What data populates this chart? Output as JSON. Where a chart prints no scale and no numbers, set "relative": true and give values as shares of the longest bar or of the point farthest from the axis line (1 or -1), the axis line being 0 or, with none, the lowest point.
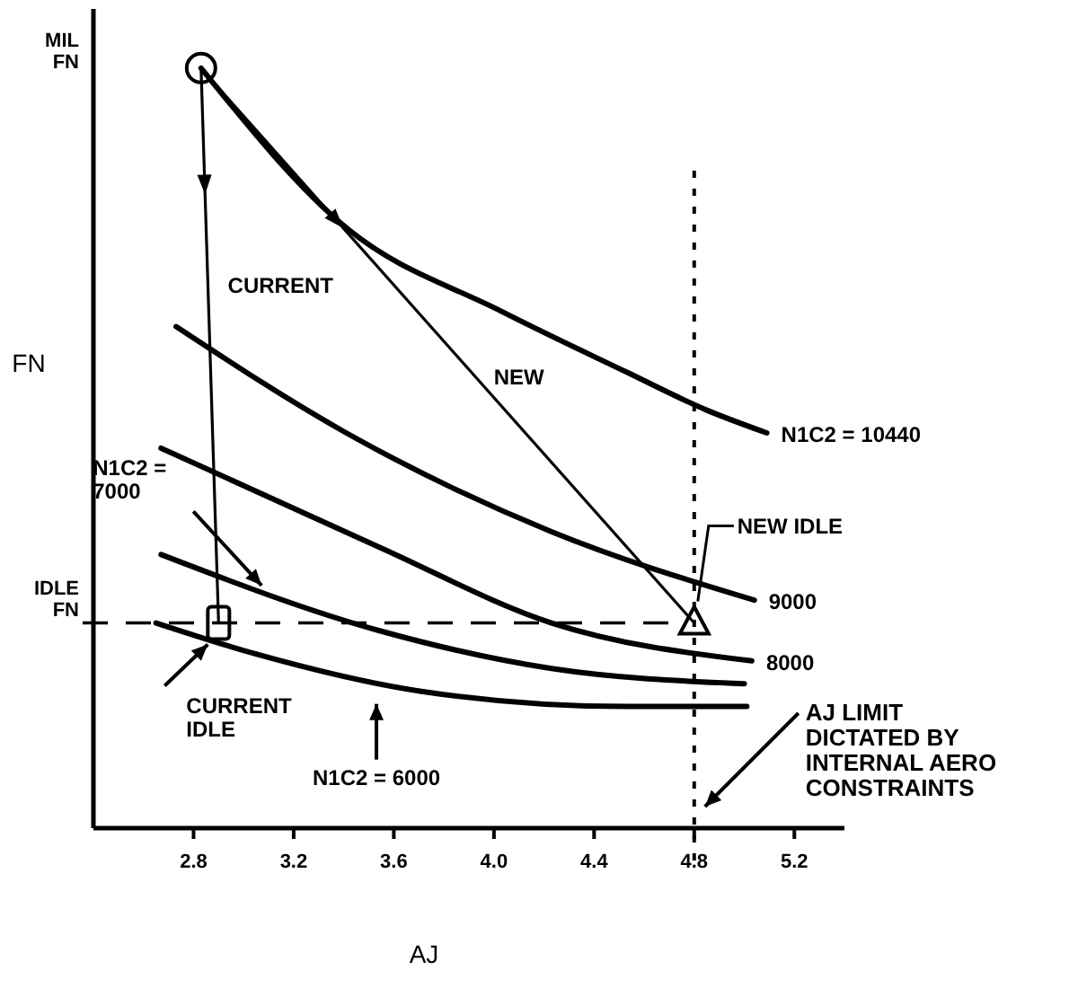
{
  "chart_data": {
    "type": "line",
    "relative": true,
    "xlabel": "AJ",
    "ylabel": "FN",
    "xlim": [
      2.4,
      5.4
    ],
    "xticks": [
      2.8,
      3.2,
      3.6,
      {
        "value": 4,
        "label": "4.0"
      },
      4.4,
      4.8,
      5.2
    ],
    "marker": "none",
    "line_style": "solid",
    "grid": false,
    "legend": false,
    "series": [
      {
        "name": "N1C2 = 10440",
        "color": "#000000",
        "x": [
          2.83,
          3.41,
          4.03,
          4.53,
          4.85,
          5.09
        ],
        "values": [
          1.0,
          0.79,
          0.68,
          0.6,
          0.55,
          0.52
        ]
      },
      {
        "name": "9000",
        "color": "#000000",
        "x": [
          2.73,
          3.41,
          4.23,
          5.04
        ],
        "values": [
          0.66,
          0.52,
          0.39,
          0.3
        ]
      },
      {
        "name": "8000",
        "color": "#000000",
        "x": [
          2.67,
          3.54,
          4.23,
          5.03
        ],
        "values": [
          0.5,
          0.37,
          0.27,
          0.22
        ]
      },
      {
        "name": "N1C2 = 7000",
        "color": "#000000",
        "x": [
          2.67,
          3.54,
          4.23,
          5.0
        ],
        "values": [
          0.36,
          0.26,
          0.21,
          0.19
        ]
      },
      {
        "name": "N1C2 = 6000",
        "color": "#000000",
        "x": [
          2.65,
          3.04,
          3.71,
          4.53,
          5.01
        ],
        "values": [
          0.27,
          0.23,
          0.18,
          0.16,
          0.16
        ]
      },
      {
        "name": "CURRENT",
        "color": "#000000",
        "x": [
          2.83,
          2.9
        ],
        "values": [
          1.0,
          0.27
        ]
      },
      {
        "name": "NEW",
        "color": "#000000",
        "x": [
          2.83,
          4.8
        ],
        "values": [
          1.0,
          0.27
        ]
      },
      {
        "type": "scatter",
        "marker": "circle",
        "color": "#000000",
        "x": [
          2.83
        ],
        "values": [
          1.0
        ]
      },
      {
        "type": "scatter",
        "marker": "square",
        "color": "#000000",
        "x": [
          2.9
        ],
        "values": [
          0.27
        ]
      },
      {
        "type": "scatter",
        "marker": "triangle",
        "color": "#000000",
        "x": [
          4.8
        ],
        "values": [
          0.27
        ]
      }
    ],
    "ref_lines": [
      {
        "axis": "y",
        "value": 0.27,
        "label": "IDLE FN",
        "line_style": "dashed",
        "color": "#000000"
      },
      {
        "axis": "x",
        "value": 4.8,
        "label": "AJ LIMIT DICTATED BY INTERNAL AERO CONSTRAINTS",
        "line_style": "dotted",
        "color": "#000000"
      }
    ],
    "annotations": [
      "MIL FN",
      "CURRENT IDLE",
      "NEW IDLE"
    ]
  }
}
